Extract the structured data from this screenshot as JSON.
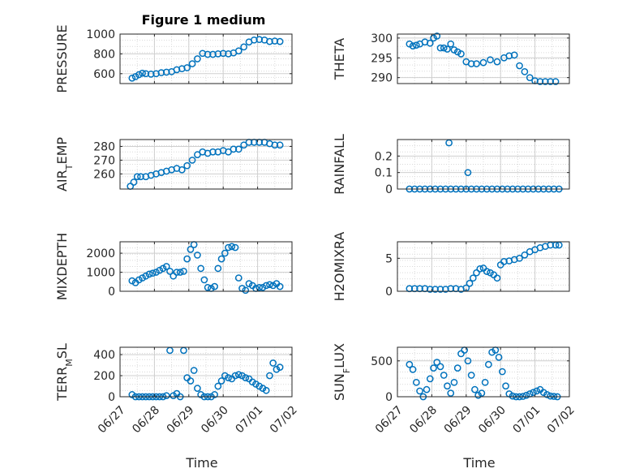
{
  "figure": {
    "title": "Figure 1 medium"
  },
  "chart_data": [
    {
      "type": "scatter",
      "ylabel": "PRESSURE",
      "xlabel": "",
      "ylim": [
        500,
        1000
      ],
      "yticks": [
        600,
        800,
        1000
      ],
      "xlim": [
        0,
        5
      ],
      "grid": true,
      "x_ticklabels": [],
      "x": [
        0.35,
        0.45,
        0.55,
        0.65,
        0.75,
        0.9,
        1.05,
        1.2,
        1.35,
        1.5,
        1.65,
        1.8,
        1.95,
        2.1,
        2.25,
        2.4,
        2.55,
        2.7,
        2.85,
        3.0,
        3.15,
        3.3,
        3.45,
        3.6,
        3.75,
        3.9,
        4.05,
        4.2,
        4.35,
        4.5,
        4.65
      ],
      "y": [
        555,
        570,
        590,
        605,
        600,
        595,
        600,
        610,
        615,
        620,
        640,
        650,
        660,
        700,
        750,
        805,
        795,
        795,
        800,
        805,
        800,
        810,
        830,
        870,
        920,
        940,
        945,
        940,
        925,
        930,
        925
      ]
    },
    {
      "type": "scatter",
      "ylabel": "THETA",
      "xlabel": "",
      "ylim": [
        288.5,
        301
      ],
      "yticks": [
        290,
        295,
        300
      ],
      "xlim": [
        0,
        5
      ],
      "grid": true,
      "x_ticklabels": [],
      "x": [
        0.35,
        0.45,
        0.55,
        0.65,
        0.8,
        0.95,
        1.05,
        1.15,
        1.25,
        1.35,
        1.45,
        1.55,
        1.65,
        1.75,
        1.85,
        2.0,
        2.15,
        2.3,
        2.5,
        2.7,
        2.9,
        3.1,
        3.25,
        3.4,
        3.55,
        3.7,
        3.85,
        4.0,
        4.15,
        4.3,
        4.45,
        4.6
      ],
      "y": [
        298.5,
        298,
        298.2,
        298.5,
        299,
        298.7,
        300,
        300.5,
        297.5,
        297.5,
        297.2,
        298.5,
        297,
        296.5,
        296,
        294,
        293.5,
        293.5,
        293.8,
        294.5,
        294,
        295,
        295.5,
        295.7,
        293,
        291.5,
        290,
        289.2,
        289,
        289,
        289,
        289
      ]
    },
    {
      "type": "scatter",
      "ylabel": "AIR_TEMP",
      "xlabel": "",
      "ylim": [
        249,
        285
      ],
      "yticks": [
        260,
        270,
        280
      ],
      "xlim": [
        0,
        5
      ],
      "grid": true,
      "x_ticklabels": [],
      "x": [
        0.3,
        0.4,
        0.5,
        0.6,
        0.75,
        0.9,
        1.05,
        1.2,
        1.35,
        1.5,
        1.65,
        1.8,
        1.95,
        2.1,
        2.25,
        2.4,
        2.55,
        2.7,
        2.85,
        3.0,
        3.15,
        3.3,
        3.45,
        3.6,
        3.75,
        3.9,
        4.05,
        4.2,
        4.35,
        4.5,
        4.65
      ],
      "y": [
        251,
        254,
        258,
        258,
        258,
        259,
        260,
        261,
        262,
        263,
        264,
        263,
        266,
        270,
        274,
        276,
        275,
        276,
        276,
        277,
        276,
        278,
        278,
        281,
        283,
        283,
        283,
        283,
        282,
        281,
        281
      ]
    },
    {
      "type": "scatter",
      "ylabel": "RAINFALL",
      "xlabel": "",
      "ylim": [
        0,
        0.3
      ],
      "yticks": [
        0,
        0.1,
        0.2
      ],
      "xlim": [
        0,
        5
      ],
      "grid": true,
      "x_ticklabels": [],
      "x": [
        0.35,
        0.5,
        0.65,
        0.8,
        0.95,
        1.1,
        1.25,
        1.4,
        1.55,
        1.7,
        1.85,
        2.0,
        2.15,
        2.3,
        2.45,
        2.6,
        2.75,
        2.9,
        3.05,
        3.2,
        3.35,
        3.5,
        3.65,
        3.8,
        3.95,
        4.1,
        4.25,
        4.4,
        4.55,
        4.7,
        1.5,
        2.05
      ],
      "y": [
        0,
        0,
        0,
        0,
        0,
        0,
        0,
        0,
        0,
        0,
        0,
        0,
        0,
        0,
        0,
        0,
        0,
        0,
        0,
        0,
        0,
        0,
        0,
        0,
        0,
        0,
        0,
        0,
        0,
        0,
        0.28,
        0.1
      ]
    },
    {
      "type": "scatter",
      "ylabel": "MIXDEPTH",
      "xlabel": "",
      "ylim": [
        0,
        2600
      ],
      "yticks": [
        0,
        1000,
        2000
      ],
      "xlim": [
        0,
        5
      ],
      "grid": true,
      "x_ticklabels": [],
      "x": [
        0.35,
        0.45,
        0.55,
        0.65,
        0.75,
        0.85,
        0.95,
        1.05,
        1.15,
        1.25,
        1.35,
        1.45,
        1.55,
        1.65,
        1.75,
        1.85,
        1.95,
        2.05,
        2.15,
        2.25,
        2.35,
        2.45,
        2.55,
        2.65,
        2.75,
        2.85,
        2.95,
        3.05,
        3.15,
        3.25,
        3.35,
        3.45,
        3.55,
        3.65,
        3.75,
        3.85,
        3.95,
        4.05,
        4.15,
        4.25,
        4.35,
        4.45,
        4.55,
        4.65
      ],
      "y": [
        550,
        450,
        600,
        700,
        800,
        900,
        950,
        1000,
        1100,
        1200,
        1300,
        1050,
        800,
        1000,
        1000,
        1050,
        1700,
        2200,
        2450,
        1900,
        1200,
        600,
        200,
        150,
        250,
        1200,
        1700,
        2000,
        2300,
        2350,
        2300,
        700,
        150,
        50,
        400,
        300,
        150,
        200,
        200,
        300,
        350,
        300,
        400,
        250
      ]
    },
    {
      "type": "scatter",
      "ylabel": "H2OMIXRA",
      "xlabel": "",
      "ylim": [
        0,
        7.5
      ],
      "yticks": [
        0,
        5
      ],
      "xlim": [
        0,
        5
      ],
      "grid": true,
      "x_ticklabels": [],
      "x": [
        0.35,
        0.5,
        0.65,
        0.8,
        0.95,
        1.1,
        1.25,
        1.4,
        1.55,
        1.7,
        1.85,
        2.0,
        2.1,
        2.2,
        2.3,
        2.4,
        2.5,
        2.6,
        2.7,
        2.8,
        2.9,
        3.0,
        3.1,
        3.25,
        3.4,
        3.55,
        3.7,
        3.85,
        4.0,
        4.15,
        4.3,
        4.45,
        4.6,
        4.7
      ],
      "y": [
        0.4,
        0.4,
        0.4,
        0.4,
        0.3,
        0.3,
        0.3,
        0.3,
        0.4,
        0.4,
        0.3,
        0.5,
        1.2,
        2.0,
        2.8,
        3.4,
        3.5,
        3.0,
        2.8,
        2.5,
        2.0,
        4.0,
        4.5,
        4.6,
        4.8,
        5.0,
        5.5,
        6.0,
        6.3,
        6.6,
        6.8,
        7.0,
        7.0,
        7.0
      ]
    },
    {
      "type": "scatter",
      "ylabel": "TERR_MSL",
      "xlabel": "Time",
      "ylim": [
        0,
        470
      ],
      "yticks": [
        0,
        200,
        400
      ],
      "xlim": [
        0,
        5
      ],
      "grid": true,
      "x_ticklabels": [
        "06/27",
        "06/28",
        "06/29",
        "06/30",
        "07/01",
        "07/02"
      ],
      "x": [
        0.35,
        0.45,
        0.55,
        0.65,
        0.75,
        0.85,
        0.95,
        1.05,
        1.15,
        1.25,
        1.35,
        1.45,
        1.55,
        1.65,
        1.75,
        1.85,
        1.95,
        2.05,
        2.15,
        2.25,
        2.35,
        2.45,
        2.55,
        2.65,
        2.75,
        2.85,
        2.95,
        3.05,
        3.15,
        3.25,
        3.35,
        3.45,
        3.55,
        3.65,
        3.75,
        3.85,
        3.95,
        4.05,
        4.15,
        4.25,
        4.35,
        4.45,
        4.55,
        4.65
      ],
      "y": [
        20,
        0,
        0,
        0,
        0,
        0,
        0,
        0,
        0,
        0,
        10,
        440,
        10,
        30,
        0,
        440,
        180,
        150,
        250,
        80,
        20,
        0,
        0,
        0,
        20,
        100,
        150,
        200,
        180,
        170,
        200,
        210,
        200,
        180,
        170,
        140,
        120,
        100,
        80,
        60,
        200,
        320,
        260,
        280
      ]
    },
    {
      "type": "scatter",
      "ylabel": "SUN_FLUX",
      "xlabel": "Time",
      "ylim": [
        0,
        690
      ],
      "yticks": [
        0,
        500
      ],
      "xlim": [
        0,
        5
      ],
      "grid": true,
      "x_ticklabels": [
        "06/27",
        "06/28",
        "06/29",
        "06/30",
        "07/01",
        "07/02"
      ],
      "x": [
        0.35,
        0.45,
        0.55,
        0.65,
        0.75,
        0.85,
        0.95,
        1.05,
        1.15,
        1.25,
        1.35,
        1.45,
        1.55,
        1.65,
        1.75,
        1.85,
        1.95,
        2.05,
        2.15,
        2.25,
        2.35,
        2.45,
        2.55,
        2.65,
        2.75,
        2.85,
        2.95,
        3.05,
        3.15,
        3.25,
        3.35,
        3.45,
        3.55,
        3.65,
        3.75,
        3.85,
        3.95,
        4.05,
        4.15,
        4.25,
        4.35,
        4.45,
        4.55,
        4.65
      ],
      "y": [
        450,
        380,
        200,
        80,
        0,
        100,
        250,
        400,
        480,
        420,
        300,
        150,
        50,
        200,
        400,
        600,
        650,
        500,
        300,
        100,
        20,
        50,
        200,
        450,
        620,
        650,
        550,
        350,
        150,
        40,
        10,
        0,
        0,
        5,
        20,
        40,
        60,
        80,
        100,
        60,
        30,
        10,
        5,
        0
      ]
    }
  ]
}
